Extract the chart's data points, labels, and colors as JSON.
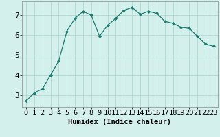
{
  "x": [
    0,
    1,
    2,
    3,
    4,
    5,
    6,
    7,
    8,
    9,
    10,
    11,
    12,
    13,
    14,
    15,
    16,
    17,
    18,
    19,
    20,
    21,
    22,
    23
  ],
  "y": [
    2.7,
    3.1,
    3.3,
    4.0,
    4.7,
    6.2,
    6.85,
    7.2,
    7.0,
    5.95,
    6.5,
    6.85,
    7.25,
    7.4,
    7.05,
    7.2,
    7.1,
    6.7,
    6.6,
    6.4,
    6.35,
    5.95,
    5.55,
    5.45
  ],
  "line_color": "#1a7a6e",
  "marker": "D",
  "marker_size": 2.0,
  "bg_color": "#d4f0ec",
  "grid_color": "#b0d8d2",
  "xlabel": "Humidex (Indice chaleur)",
  "xlabel_fontsize": 7.5,
  "tick_fontsize": 7.5,
  "ylim": [
    2.4,
    7.7
  ],
  "xlim": [
    -0.5,
    23.5
  ],
  "yticks": [
    3,
    4,
    5,
    6,
    7
  ],
  "xtick_labels": [
    "0",
    "1",
    "2",
    "3",
    "4",
    "5",
    "6",
    "7",
    "8",
    "9",
    "10",
    "11",
    "12",
    "13",
    "14",
    "15",
    "16",
    "17",
    "18",
    "19",
    "20",
    "21",
    "22",
    "23"
  ]
}
